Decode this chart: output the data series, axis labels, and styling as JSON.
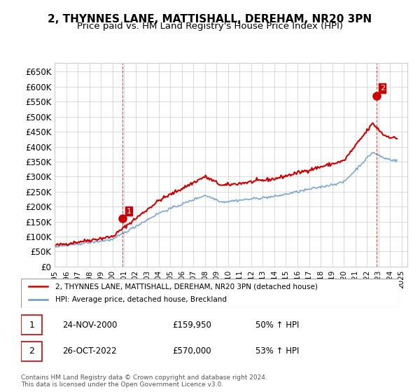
{
  "title": "2, THYNNES LANE, MATTISHALL, DEREHAM, NR20 3PN",
  "subtitle": "Price paid vs. HM Land Registry's House Price Index (HPI)",
  "title_fontsize": 11,
  "subtitle_fontsize": 9.5,
  "ylabel_ticks": [
    "£0",
    "£50K",
    "£100K",
    "£150K",
    "£200K",
    "£250K",
    "£300K",
    "£350K",
    "£400K",
    "£450K",
    "£500K",
    "£550K",
    "£600K",
    "£650K"
  ],
  "ytick_values": [
    0,
    50000,
    100000,
    150000,
    200000,
    250000,
    300000,
    350000,
    400000,
    450000,
    500000,
    550000,
    600000,
    650000
  ],
  "ylim": [
    0,
    680000
  ],
  "sale1": {
    "date_num": 2000.9,
    "price": 159950,
    "label": "1"
  },
  "sale2": {
    "date_num": 2022.82,
    "price": 570000,
    "label": "2"
  },
  "legend_line1": "2, THYNNES LANE, MATTISHALL, DEREHAM, NR20 3PN (detached house)",
  "legend_line2": "HPI: Average price, detached house, Breckland",
  "annotation1": [
    "1",
    "24-NOV-2000",
    "£159,950",
    "50% ↑ HPI"
  ],
  "annotation2": [
    "2",
    "26-OCT-2022",
    "£570,000",
    "53% ↑ HPI"
  ],
  "footer": "Contains HM Land Registry data © Crown copyright and database right 2024.\nThis data is licensed under the Open Government Licence v3.0.",
  "red_color": "#cc0000",
  "blue_color": "#6699cc",
  "marker_border_color": "#cc0000"
}
